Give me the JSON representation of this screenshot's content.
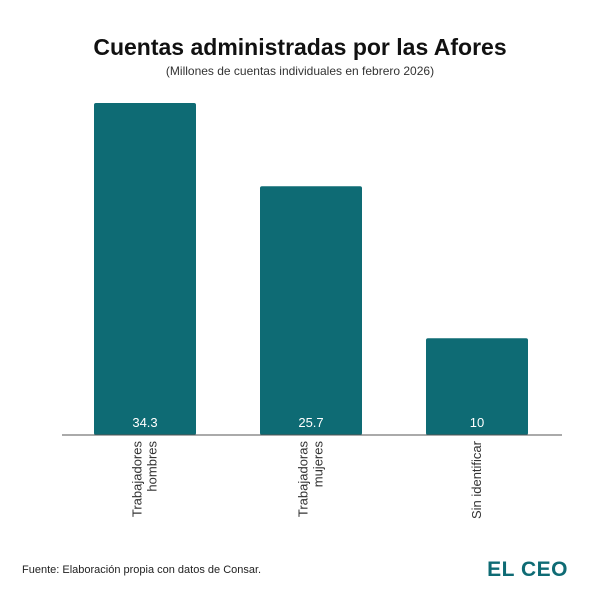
{
  "header": {
    "title": "Cuentas administradas por las Afores",
    "subtitle": "(Millones de cuentas individuales en febrero 2026)"
  },
  "chart_data": {
    "type": "bar",
    "title": "Cuentas administradas por las Afores",
    "subtitle": "(Millones de cuentas individuales en febrero 2026)",
    "categories": [
      [
        "Trabajadores",
        "hombres"
      ],
      [
        "Trabajadoras",
        "mujeres"
      ],
      [
        "Sin identificar"
      ]
    ],
    "values": [
      34.3,
      25.7,
      10
    ],
    "value_labels": [
      "34.3",
      "25.7",
      "10"
    ],
    "ylim": [
      0,
      34.3
    ],
    "bar_color": "#0e6b74",
    "grid": false,
    "legend": "none",
    "xlabel": "",
    "ylabel": ""
  },
  "footer": {
    "source": "Fuente: Elaboración propia con datos de Consar.",
    "brand_word_1": "EL",
    "brand_word_2": "CEO",
    "brand_color": "#0e6b74"
  }
}
